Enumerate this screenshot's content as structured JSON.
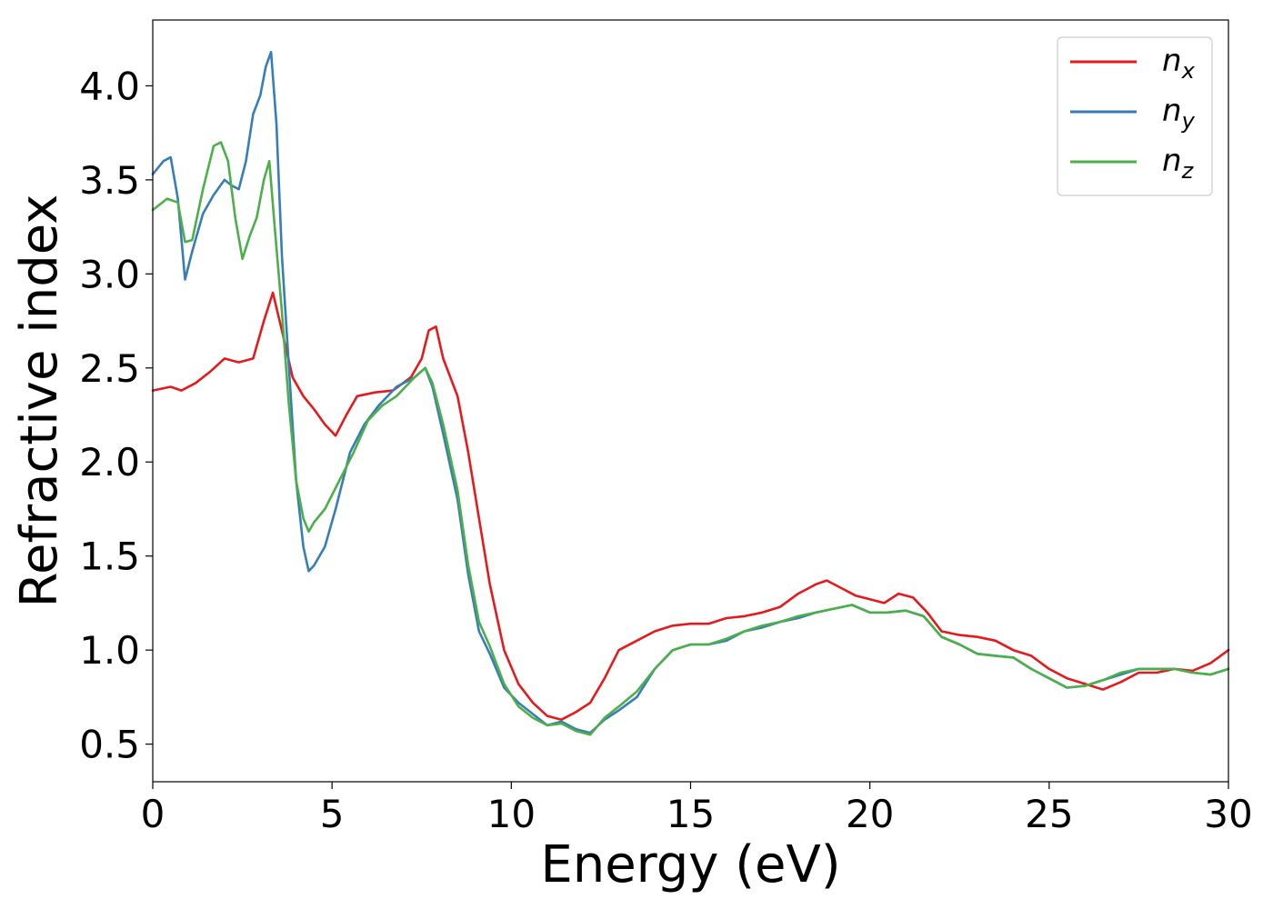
{
  "chart_data": {
    "type": "line",
    "xlabel": "Energy (eV)",
    "ylabel": "Refractive index",
    "xlim": [
      0,
      30
    ],
    "ylim": [
      0.3,
      4.35
    ],
    "xticks": [
      0,
      5,
      10,
      15,
      20,
      25,
      30
    ],
    "xtick_labels": [
      "0",
      "5",
      "10",
      "15",
      "20",
      "25",
      "30"
    ],
    "yticks": [
      0.5,
      1.0,
      1.5,
      2.0,
      2.5,
      3.0,
      3.5,
      4.0
    ],
    "ytick_labels": [
      "0.5",
      "1.0",
      "1.5",
      "2.0",
      "2.5",
      "3.0",
      "3.5",
      "4.0"
    ],
    "grid": false,
    "legend_position": "top-right",
    "series": [
      {
        "name": "n_x",
        "label_base": "n",
        "label_sub": "x",
        "color": "#e41a1c",
        "x": [
          0,
          0.5,
          0.8,
          1.2,
          1.6,
          2.0,
          2.4,
          2.8,
          3.1,
          3.35,
          3.6,
          3.9,
          4.2,
          4.5,
          4.8,
          5.1,
          5.4,
          5.7,
          6.2,
          6.7,
          7.2,
          7.5,
          7.7,
          7.9,
          8.1,
          8.5,
          8.8,
          9.1,
          9.4,
          9.8,
          10.2,
          10.6,
          11.0,
          11.4,
          11.8,
          12.2,
          12.6,
          13.0,
          13.5,
          14.0,
          14.5,
          15.0,
          15.5,
          16.0,
          16.5,
          17.0,
          17.5,
          18.0,
          18.5,
          18.8,
          19.2,
          19.6,
          20.0,
          20.4,
          20.8,
          21.2,
          21.6,
          22.0,
          22.5,
          23.0,
          23.5,
          24.0,
          24.5,
          25.0,
          25.5,
          26.0,
          26.5,
          27.0,
          27.5,
          28.0,
          28.5,
          29.0,
          29.5,
          30.0
        ],
        "y": [
          2.38,
          2.4,
          2.38,
          2.42,
          2.48,
          2.55,
          2.53,
          2.55,
          2.75,
          2.9,
          2.7,
          2.45,
          2.35,
          2.28,
          2.2,
          2.14,
          2.25,
          2.35,
          2.37,
          2.38,
          2.45,
          2.55,
          2.7,
          2.72,
          2.55,
          2.35,
          2.05,
          1.7,
          1.35,
          1.0,
          0.82,
          0.72,
          0.65,
          0.63,
          0.67,
          0.72,
          0.85,
          1.0,
          1.05,
          1.1,
          1.13,
          1.14,
          1.14,
          1.17,
          1.18,
          1.2,
          1.23,
          1.3,
          1.35,
          1.37,
          1.33,
          1.29,
          1.27,
          1.25,
          1.3,
          1.28,
          1.2,
          1.1,
          1.08,
          1.07,
          1.05,
          1.0,
          0.97,
          0.9,
          0.85,
          0.82,
          0.79,
          0.83,
          0.88,
          0.88,
          0.9,
          0.89,
          0.93,
          1.0
        ]
      },
      {
        "name": "n_y",
        "label_base": "n",
        "label_sub": "y",
        "color": "#377eb8",
        "x": [
          0,
          0.3,
          0.5,
          0.7,
          0.9,
          1.1,
          1.4,
          1.7,
          2.0,
          2.2,
          2.4,
          2.6,
          2.8,
          3.0,
          3.15,
          3.3,
          3.45,
          3.6,
          3.8,
          4.0,
          4.2,
          4.35,
          4.5,
          4.8,
          5.1,
          5.5,
          5.9,
          6.3,
          6.8,
          7.3,
          7.6,
          7.8,
          8.1,
          8.5,
          8.8,
          9.1,
          9.4,
          9.8,
          10.2,
          10.6,
          11.0,
          11.4,
          11.8,
          12.2,
          12.6,
          13.0,
          13.5,
          14.0,
          14.5,
          15.0,
          15.5,
          16.0,
          16.5,
          17.0,
          17.5,
          18.0,
          18.5,
          19.0,
          19.5,
          20.0,
          20.5,
          21.0,
          21.5,
          22.0,
          22.5,
          23.0,
          23.5,
          24.0,
          24.5,
          25.0,
          25.5,
          26.0,
          26.5,
          27.0,
          27.5,
          28.0,
          28.5,
          29.0,
          29.5,
          30.0
        ],
        "y": [
          3.53,
          3.6,
          3.62,
          3.4,
          2.97,
          3.12,
          3.32,
          3.42,
          3.5,
          3.47,
          3.45,
          3.6,
          3.85,
          3.95,
          4.1,
          4.18,
          3.8,
          3.1,
          2.5,
          1.9,
          1.55,
          1.42,
          1.45,
          1.55,
          1.75,
          2.05,
          2.2,
          2.3,
          2.4,
          2.45,
          2.5,
          2.4,
          2.15,
          1.8,
          1.4,
          1.1,
          0.98,
          0.8,
          0.72,
          0.66,
          0.6,
          0.62,
          0.58,
          0.56,
          0.63,
          0.68,
          0.75,
          0.9,
          1.0,
          1.03,
          1.03,
          1.05,
          1.1,
          1.12,
          1.15,
          1.17,
          1.2,
          1.22,
          1.24,
          1.2,
          1.2,
          1.21,
          1.18,
          1.07,
          1.03,
          0.98,
          0.97,
          0.96,
          0.9,
          0.85,
          0.8,
          0.81,
          0.84,
          0.87,
          0.9,
          0.9,
          0.9,
          0.88,
          0.87,
          0.9
        ]
      },
      {
        "name": "n_z",
        "label_base": "n",
        "label_sub": "z",
        "color": "#4daf4a",
        "x": [
          0,
          0.4,
          0.7,
          0.9,
          1.1,
          1.4,
          1.7,
          1.9,
          2.1,
          2.3,
          2.5,
          2.7,
          2.9,
          3.1,
          3.25,
          3.4,
          3.6,
          3.8,
          4.0,
          4.2,
          4.35,
          4.5,
          4.8,
          5.2,
          5.6,
          6.0,
          6.4,
          6.8,
          7.3,
          7.6,
          7.8,
          8.1,
          8.5,
          8.8,
          9.1,
          9.4,
          9.8,
          10.2,
          10.6,
          11.0,
          11.4,
          11.8,
          12.2,
          12.6,
          13.0,
          13.5,
          14.0,
          14.5,
          15.0,
          15.5,
          16.0,
          16.5,
          17.0,
          17.5,
          18.0,
          18.5,
          19.0,
          19.5,
          20.0,
          20.5,
          21.0,
          21.5,
          22.0,
          22.5,
          23.0,
          23.5,
          24.0,
          24.5,
          25.0,
          25.5,
          26.0,
          26.5,
          27.0,
          27.5,
          28.0,
          28.5,
          29.0,
          29.5,
          30.0
        ],
        "y": [
          3.34,
          3.4,
          3.38,
          3.17,
          3.18,
          3.45,
          3.68,
          3.7,
          3.6,
          3.3,
          3.08,
          3.2,
          3.3,
          3.5,
          3.6,
          3.25,
          2.8,
          2.3,
          1.9,
          1.7,
          1.63,
          1.68,
          1.75,
          1.9,
          2.05,
          2.22,
          2.3,
          2.35,
          2.45,
          2.5,
          2.42,
          2.2,
          1.85,
          1.45,
          1.15,
          1.02,
          0.82,
          0.7,
          0.64,
          0.6,
          0.61,
          0.57,
          0.55,
          0.64,
          0.7,
          0.78,
          0.9,
          1.0,
          1.03,
          1.03,
          1.06,
          1.1,
          1.13,
          1.15,
          1.18,
          1.2,
          1.22,
          1.24,
          1.2,
          1.2,
          1.21,
          1.18,
          1.07,
          1.03,
          0.98,
          0.97,
          0.96,
          0.9,
          0.85,
          0.8,
          0.81,
          0.84,
          0.88,
          0.9,
          0.9,
          0.9,
          0.88,
          0.87,
          0.9
        ]
      }
    ]
  }
}
